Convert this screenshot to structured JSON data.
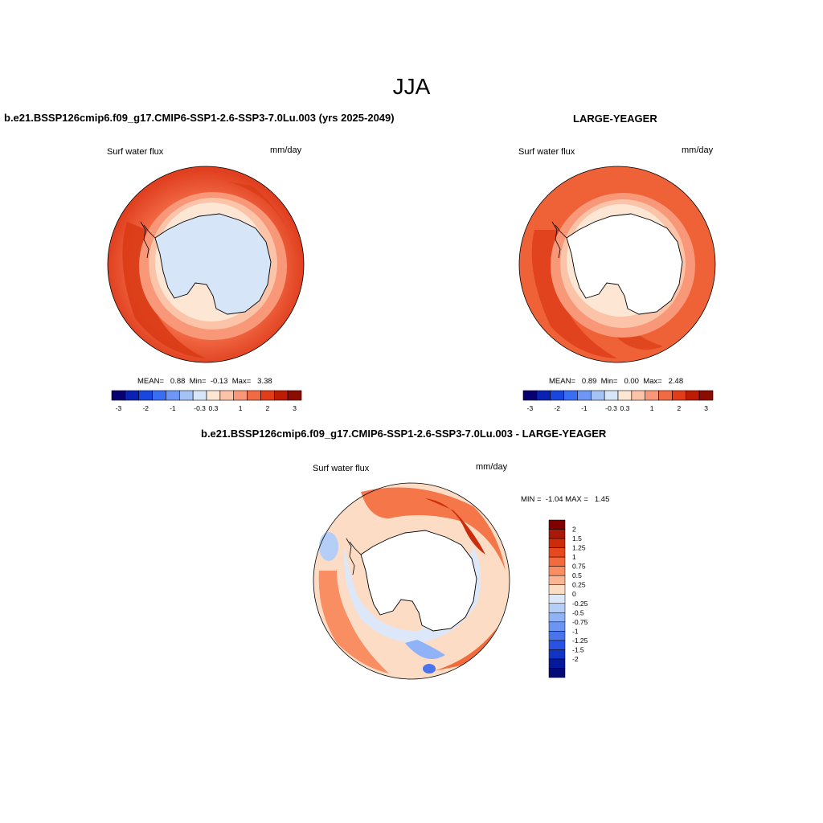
{
  "figure": {
    "season": "JJA",
    "panel1": {
      "title": "b.e21.BSSP126cmip6.f09_g17.CMIP6-SSP1-2.6-SSP3-7.0Lu.003 (yrs 2025-2049)",
      "variable": "Surf water flux",
      "units": "mm/day",
      "stats": "MEAN=   0.88  Min=  -0.13  Max=   3.38"
    },
    "panel2": {
      "title": "LARGE-YEAGER",
      "variable": "Surf water flux",
      "units": "mm/day",
      "stats": "MEAN=   0.89  Min=   0.00  Max=   2.48"
    },
    "panel3": {
      "title": "b.e21.BSSP126cmip6.f09_g17.CMIP6-SSP1-2.6-SSP3-7.0Lu.003 - LARGE-YEAGER",
      "variable": "Surf water flux",
      "units": "mm/day",
      "stats": "MIN =  -1.04 MAX =   1.45"
    }
  },
  "colorbars": {
    "horizontal": {
      "colors": [
        "#08006e",
        "#0a22b4",
        "#1a46e0",
        "#3a6ef2",
        "#6e96f4",
        "#a4c2f4",
        "#d6e6f8",
        "#fde6d4",
        "#fbc3a8",
        "#f89878",
        "#f26a44",
        "#e23c18",
        "#bc1c06",
        "#8c0c02"
      ],
      "tick_labels": [
        "-3",
        "-2",
        "-1",
        "-0.3",
        "0.3",
        "1",
        "2",
        "3"
      ]
    },
    "vertical": {
      "colors": [
        "#800000",
        "#a8190a",
        "#cc2c0a",
        "#e8491c",
        "#f36a3c",
        "#f88e62",
        "#fbb592",
        "#fcdcc4",
        "#dce8fa",
        "#b4cef8",
        "#90b2f6",
        "#6c94f2",
        "#4a74ec",
        "#2a52e2",
        "#1234c6",
        "#06189c",
        "#040a78"
      ],
      "tick_labels": [
        "2",
        "1.5",
        "1.25",
        "1",
        "0.75",
        "0.5",
        "0.25",
        "0",
        "-0.25",
        "-0.5",
        "-0.75",
        "-1",
        "-1.25",
        "-1.5",
        "-2"
      ]
    }
  },
  "chart_data": [
    {
      "type": "heatmap",
      "title": "b.e21.BSSP126cmip6.f09_g17.CMIP6-SSP1-2.6-SSP3-7.0Lu.003 (yrs 2025-2049)",
      "variable": "Surf water flux",
      "units": "mm/day",
      "projection": "polar stereographic (south)",
      "levels": [
        -3,
        -2,
        -1,
        -0.3,
        0.3,
        1,
        2,
        3
      ],
      "mean": 0.88,
      "min": -0.13,
      "max": 3.38
    },
    {
      "type": "heatmap",
      "title": "LARGE-YEAGER",
      "variable": "Surf water flux",
      "units": "mm/day",
      "projection": "polar stereographic (south)",
      "levels": [
        -3,
        -2,
        -1,
        -0.3,
        0.3,
        1,
        2,
        3
      ],
      "mean": 0.89,
      "min": 0.0,
      "max": 2.48
    },
    {
      "type": "heatmap",
      "title": "b.e21.BSSP126cmip6.f09_g17.CMIP6-SSP1-2.6-SSP3-7.0Lu.003 - LARGE-YEAGER",
      "variable": "Surf water flux",
      "units": "mm/day",
      "projection": "polar stereographic (south)",
      "levels": [
        -2,
        -1.5,
        -1.25,
        -1,
        -0.75,
        -0.5,
        -0.25,
        0,
        0.25,
        0.5,
        0.75,
        1,
        1.25,
        1.5,
        2
      ],
      "min": -1.04,
      "max": 1.45
    }
  ]
}
